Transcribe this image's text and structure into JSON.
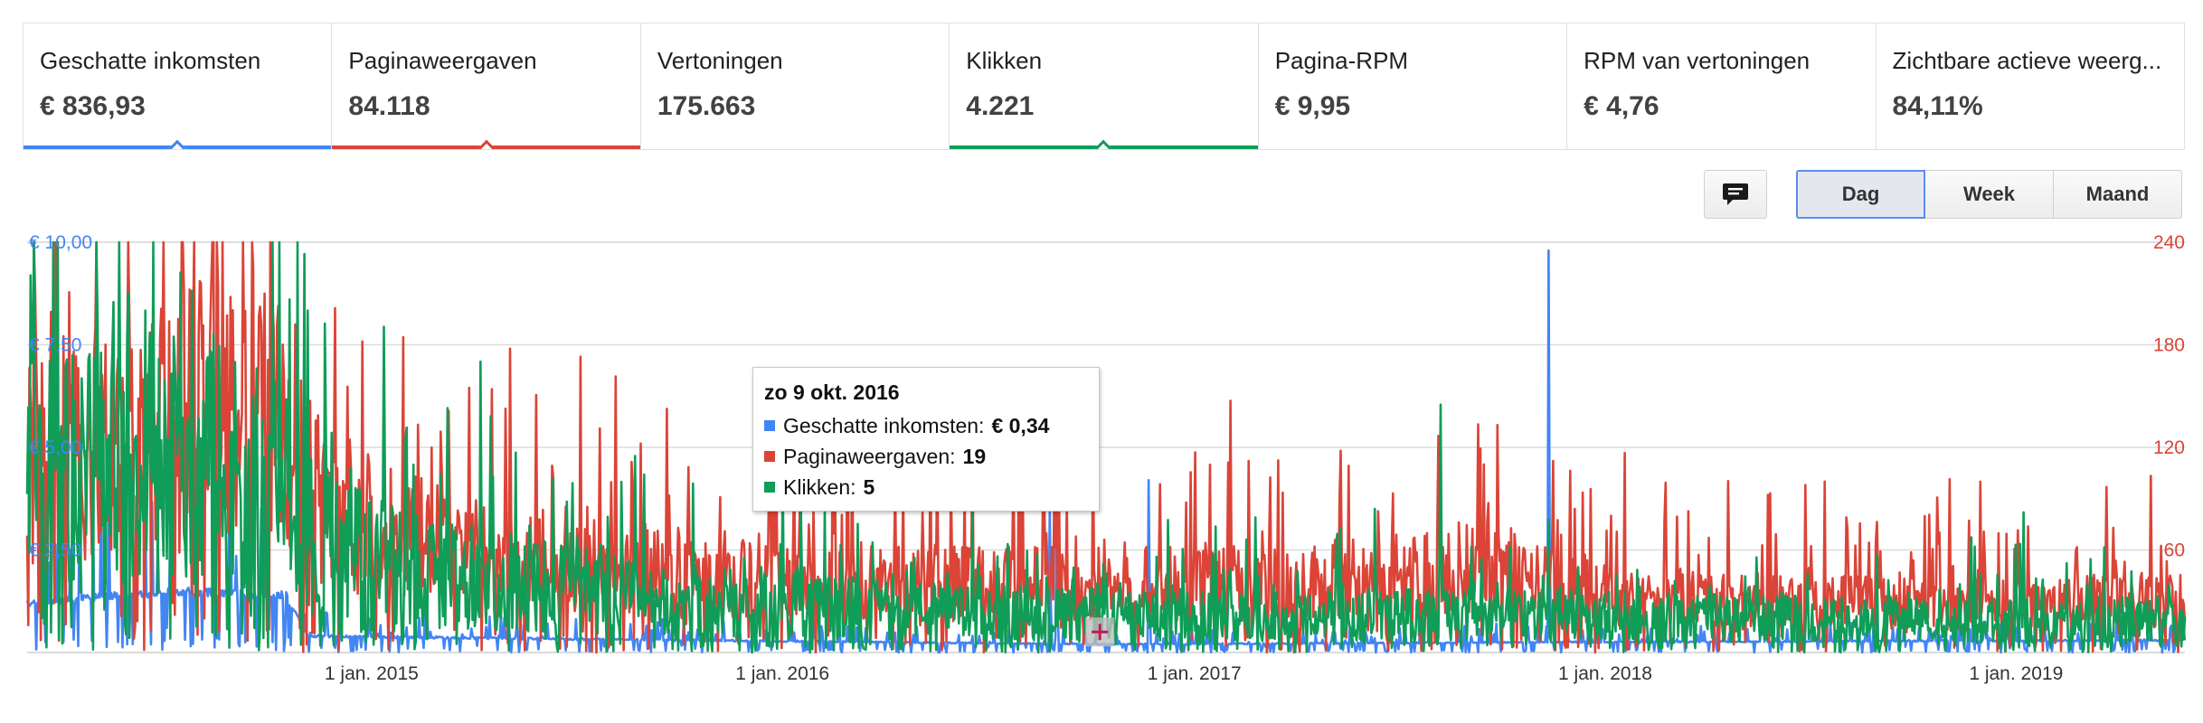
{
  "metrics": [
    {
      "label": "Geschatte inkomsten",
      "value": "€ 836,93",
      "color": "#4285f4",
      "selected": true
    },
    {
      "label": "Paginaweergaven",
      "value": "84.118",
      "color": "#db4437",
      "selected": true
    },
    {
      "label": "Vertoningen",
      "value": "175.663",
      "color": "",
      "selected": false
    },
    {
      "label": "Klikken",
      "value": "4.221",
      "color": "#0f9d58",
      "selected": true
    },
    {
      "label": "Pagina-RPM",
      "value": "€ 9,95",
      "color": "",
      "selected": false
    },
    {
      "label": "RPM van vertoningen",
      "value": "€ 4,76",
      "color": "",
      "selected": false
    },
    {
      "label": "Zichtbare actieve weerg...",
      "value": "84,11%",
      "color": "",
      "selected": false
    }
  ],
  "toolbar": {
    "comment_icon": "comment-icon",
    "granularity": [
      "Dag",
      "Week",
      "Maand"
    ],
    "selected_granularity": "Dag"
  },
  "tooltip": {
    "date": "zo 9 okt. 2016",
    "rows": [
      {
        "name": "Geschatte inkomsten:",
        "value": "€ 0,34",
        "color": "#4285f4"
      },
      {
        "name": "Paginaweergaven:",
        "value": "19",
        "color": "#db4437"
      },
      {
        "name": "Klikken:",
        "value": "5",
        "color": "#0f9d58"
      }
    ]
  },
  "chart_data": {
    "type": "line",
    "x_axis": {
      "start": "2014-03-01",
      "end": "2019-05-31",
      "tick_labels": [
        "1 jan. 2015",
        "1 jan. 2016",
        "1 jan. 2017",
        "1 jan. 2018",
        "1 jan. 2019"
      ],
      "tick_dates": [
        "2015-01-01",
        "2016-01-01",
        "2017-01-01",
        "2018-01-01",
        "2019-01-01"
      ]
    },
    "y_left": {
      "ylim": [
        0,
        10
      ],
      "tick_labels": [
        "€ 2,50",
        "€ 5,00",
        "€ 7,50",
        "€ 10,00"
      ],
      "ticks": [
        2.5,
        5,
        7.5,
        10
      ],
      "color": "#4285f4"
    },
    "y_right": {
      "ylim": [
        0,
        240
      ],
      "tick_labels": [
        "60",
        "120",
        "180",
        "240"
      ],
      "ticks": [
        60,
        120,
        180,
        240
      ],
      "color": "#db4437"
    },
    "grid": true,
    "series": [
      {
        "name": "Geschatte inkomsten",
        "axis": "left",
        "color": "#4285f4",
        "baseline": [
          [
            0,
            1.2
          ],
          [
            0.07,
            1.5
          ],
          [
            0.12,
            1.4
          ],
          [
            0.13,
            0.4
          ],
          [
            0.3,
            0.3
          ],
          [
            0.5,
            0.2
          ],
          [
            0.7,
            0.25
          ],
          [
            1.0,
            0.3
          ]
        ],
        "noise": [
          0.07,
          0.6
        ],
        "peaks": [
          [
            0.474,
            3.5
          ],
          [
            0.477,
            3.8
          ],
          [
            0.52,
            4.2
          ],
          [
            0.705,
            9.8
          ]
        ]
      },
      {
        "name": "Paginaweergaven",
        "axis": "right",
        "color": "#db4437",
        "baseline": [
          [
            0,
            110
          ],
          [
            0.05,
            130
          ],
          [
            0.1,
            150
          ],
          [
            0.12,
            120
          ],
          [
            0.14,
            80
          ],
          [
            0.2,
            60
          ],
          [
            0.3,
            45
          ],
          [
            0.4,
            40
          ],
          [
            0.5,
            40
          ],
          [
            0.6,
            42
          ],
          [
            0.68,
            50
          ],
          [
            0.72,
            35
          ],
          [
            0.8,
            30
          ],
          [
            0.9,
            28
          ],
          [
            1.0,
            30
          ]
        ],
        "noise": [
          0.55,
          0.5
        ],
        "peaks": [
          [
            0.105,
            225
          ],
          [
            0.11,
            210
          ],
          [
            0.07,
            195
          ],
          [
            0.017,
            185
          ],
          [
            0.675,
            110
          ],
          [
            0.655,
            100
          ]
        ]
      },
      {
        "name": "Klikken",
        "axis": "right",
        "color": "#0f9d58",
        "baseline": [
          [
            0,
            100
          ],
          [
            0.05,
            110
          ],
          [
            0.1,
            110
          ],
          [
            0.12,
            90
          ],
          [
            0.14,
            60
          ],
          [
            0.2,
            45
          ],
          [
            0.3,
            30
          ],
          [
            0.4,
            25
          ],
          [
            0.5,
            22
          ],
          [
            0.6,
            22
          ],
          [
            0.7,
            22
          ],
          [
            0.8,
            20
          ],
          [
            0.9,
            18
          ],
          [
            1.0,
            20
          ]
        ],
        "noise": [
          0.7,
          0.45
        ],
        "peaks": [
          [
            0.04,
            205
          ],
          [
            0.055,
            200
          ],
          [
            0.13,
            200
          ],
          [
            0.195,
            143
          ],
          [
            0.655,
            145
          ],
          [
            0.925,
            82
          ]
        ]
      }
    ],
    "highlight_date": "2016-10-09"
  }
}
